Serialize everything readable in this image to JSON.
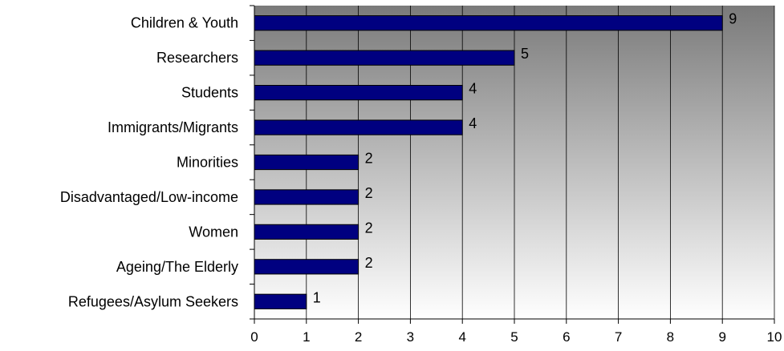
{
  "chart_data": {
    "type": "bar",
    "orientation": "horizontal",
    "categories": [
      "Children & Youth",
      "Researchers",
      "Students",
      "Immigrants/Migrants",
      "Minorities",
      "Disadvantaged/Low-income",
      "Women",
      "Ageing/The Elderly",
      "Refugees/Asylum Seekers"
    ],
    "values": [
      9,
      5,
      4,
      4,
      2,
      2,
      2,
      2,
      1
    ],
    "title": "",
    "xlabel": "",
    "ylabel": "",
    "xlim": [
      0,
      10
    ],
    "x_ticks": [
      "0",
      "1",
      "2",
      "3",
      "4",
      "5",
      "6",
      "7",
      "8",
      "9",
      "10"
    ],
    "grid": "vertical",
    "legend": "none",
    "data_labels": true
  },
  "colors": {
    "bar_fill": "#000080",
    "bar_stroke": "#000000",
    "plot_gradient_top": "#7a7a7a",
    "plot_gradient_bottom": "#ffffff",
    "grid": "#000000"
  }
}
